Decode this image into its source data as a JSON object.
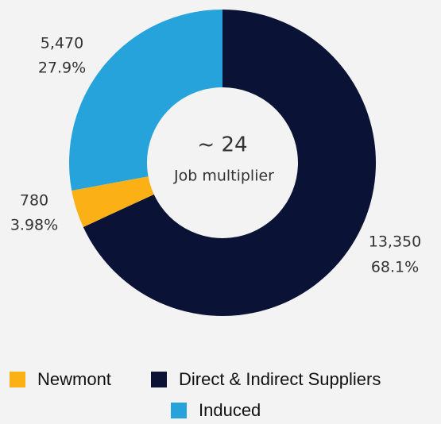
{
  "chart_data": {
    "type": "donut",
    "center_title": "~ 24",
    "center_subtitle": "Job multiplier",
    "categories": [
      "Newmont",
      "Direct & Indirect Suppliers",
      "Induced"
    ],
    "values": [
      780,
      13350,
      5470
    ],
    "value_labels": [
      "780",
      "13,350",
      "5,470"
    ],
    "percentages": [
      3.98,
      68.1,
      27.9
    ],
    "percent_labels": [
      "3.98%",
      "68.1%",
      "27.9%"
    ],
    "colors": [
      "#fbb116",
      "#0a1236",
      "#27a3dc"
    ],
    "legend": "bottom"
  }
}
